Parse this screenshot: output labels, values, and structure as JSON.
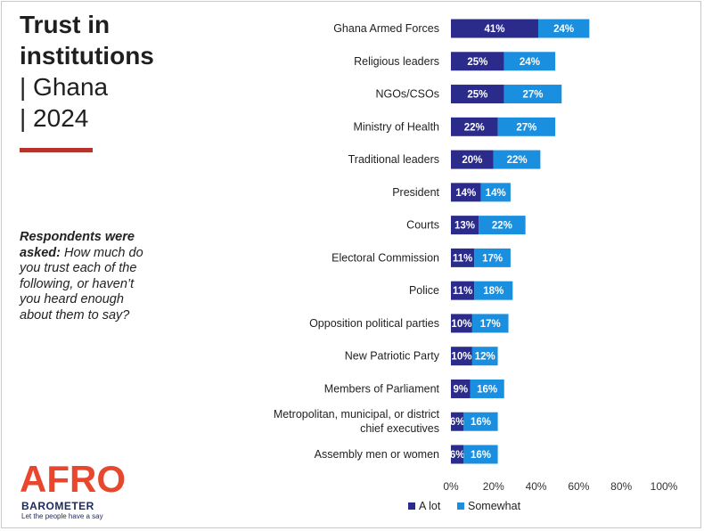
{
  "title": {
    "line1": "Trust in",
    "line2": "institutions",
    "line3": "| Ghana",
    "line4": "| 2024"
  },
  "question": {
    "lead": "Respondents were asked:",
    "text": "How much do you trust each of the following, or haven’t you heard enough about them to say?"
  },
  "logo": {
    "name_top": "AFRO",
    "name_bottom": "BAROMETER",
    "tagline": "Let the people have a say"
  },
  "colors": {
    "a_lot": "#2b2b8c",
    "somewhat": "#1a8fe0",
    "accent_rule": "#b5342b"
  },
  "chart_data": {
    "type": "bar",
    "orientation": "horizontal",
    "stacked": true,
    "categories": [
      "Ghana Armed Forces",
      "Religious leaders",
      "NGOs/CSOs",
      "Ministry of Health",
      "Traditional leaders",
      "President",
      "Courts",
      "Electoral Commission",
      "Police",
      "Opposition political parties",
      "New Patriotic Party",
      "Members of Parliament",
      "Metropolitan, municipal, or district chief executives",
      "Assembly men or women"
    ],
    "series": [
      {
        "name": "A lot",
        "values": [
          41,
          25,
          25,
          22,
          20,
          14,
          13,
          11,
          11,
          10,
          10,
          9,
          6,
          6
        ]
      },
      {
        "name": "Somewhat",
        "values": [
          24,
          24,
          27,
          27,
          22,
          14,
          22,
          17,
          18,
          17,
          12,
          16,
          16,
          16
        ]
      }
    ],
    "xlim": [
      0,
      100
    ],
    "xticks": [
      "0%",
      "20%",
      "40%",
      "60%",
      "80%",
      "100%"
    ],
    "legend_position": "bottom",
    "grid": false
  }
}
